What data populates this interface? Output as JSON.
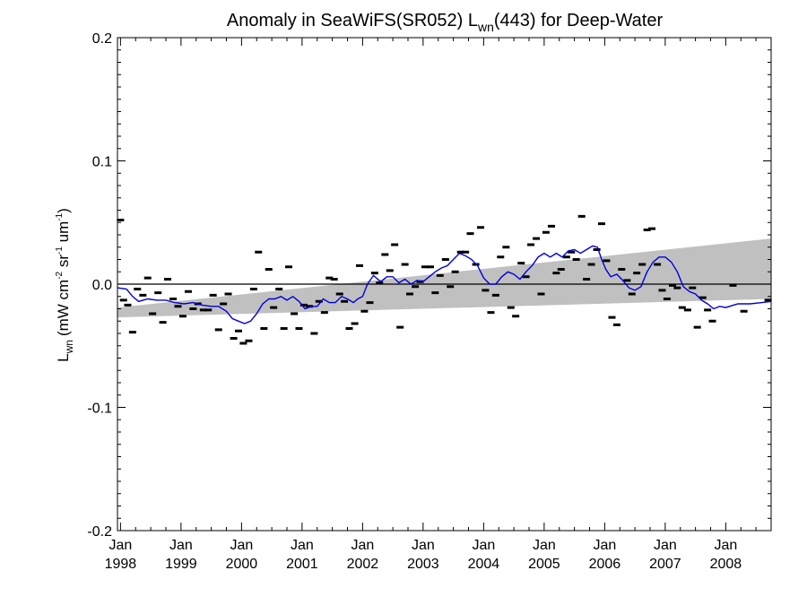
{
  "chart_data": {
    "type": "scatter",
    "title_main": "Anomaly in SeaWiFS(SR052) L",
    "title_sub": "wn",
    "title_rest": "(443) for Deep-Water",
    "ylabel_main": "L",
    "ylabel_sub": "wn",
    "ylabel_units": "(mW cm",
    "ylabel_exp1": "-2",
    "ylabel_sr": " sr",
    "ylabel_exp2": "-1",
    "ylabel_um": " um",
    "ylabel_exp3": "-1",
    "ylabel_close": ")",
    "x_range": [
      1997.95,
      2008.75
    ],
    "ylim": [
      -0.2,
      0.2
    ],
    "y_ticks": [
      {
        "value": 0.2,
        "label": "0.2"
      },
      {
        "value": 0.1,
        "label": "0.1"
      },
      {
        "value": 0.0,
        "label": "0.0"
      },
      {
        "value": -0.1,
        "label": "-0.1"
      },
      {
        "value": -0.2,
        "label": "-0.2"
      }
    ],
    "x_ticks": [
      {
        "value": 1998,
        "month": "Jan",
        "year": "1998"
      },
      {
        "value": 1999,
        "month": "Jan",
        "year": "1999"
      },
      {
        "value": 2000,
        "month": "Jan",
        "year": "2000"
      },
      {
        "value": 2001,
        "month": "Jan",
        "year": "2001"
      },
      {
        "value": 2002,
        "month": "Jan",
        "year": "2002"
      },
      {
        "value": 2003,
        "month": "Jan",
        "year": "2003"
      },
      {
        "value": 2004,
        "month": "Jan",
        "year": "2004"
      },
      {
        "value": 2005,
        "month": "Jan",
        "year": "2005"
      },
      {
        "value": 2006,
        "month": "Jan",
        "year": "2006"
      },
      {
        "value": 2007,
        "month": "Jan",
        "year": "2007"
      },
      {
        "value": 2008,
        "month": "Jan",
        "year": "2008"
      }
    ],
    "zero_line": 0.0,
    "trend_band": {
      "x": [
        1997.95,
        2008.75
      ],
      "upper": [
        -0.019,
        0.037
      ],
      "lower": [
        -0.027,
        -0.012
      ]
    },
    "monthly_points": [
      {
        "x": 1998.0,
        "y": 0.052
      },
      {
        "x": 1998.05,
        "y": -0.013
      },
      {
        "x": 1998.12,
        "y": -0.017
      },
      {
        "x": 1998.2,
        "y": -0.039
      },
      {
        "x": 1998.28,
        "y": -0.004
      },
      {
        "x": 1998.37,
        "y": -0.009
      },
      {
        "x": 1998.45,
        "y": 0.005
      },
      {
        "x": 1998.53,
        "y": -0.024
      },
      {
        "x": 1998.62,
        "y": -0.007
      },
      {
        "x": 1998.7,
        "y": -0.031
      },
      {
        "x": 1998.78,
        "y": 0.004
      },
      {
        "x": 1998.87,
        "y": -0.012
      },
      {
        "x": 1998.95,
        "y": -0.018
      },
      {
        "x": 1999.03,
        "y": -0.026
      },
      {
        "x": 1999.12,
        "y": -0.006
      },
      {
        "x": 1999.2,
        "y": -0.02
      },
      {
        "x": 1999.28,
        "y": -0.016
      },
      {
        "x": 1999.37,
        "y": -0.021
      },
      {
        "x": 1999.45,
        "y": -0.021
      },
      {
        "x": 1999.53,
        "y": -0.009
      },
      {
        "x": 1999.62,
        "y": -0.037
      },
      {
        "x": 1999.7,
        "y": -0.016
      },
      {
        "x": 1999.78,
        "y": -0.008
      },
      {
        "x": 1999.87,
        "y": -0.044
      },
      {
        "x": 1999.95,
        "y": -0.038
      },
      {
        "x": 2000.03,
        "y": -0.048
      },
      {
        "x": 2000.12,
        "y": -0.046
      },
      {
        "x": 2000.2,
        "y": -0.004
      },
      {
        "x": 2000.28,
        "y": 0.026
      },
      {
        "x": 2000.37,
        "y": -0.036
      },
      {
        "x": 2000.45,
        "y": 0.012
      },
      {
        "x": 2000.53,
        "y": -0.019
      },
      {
        "x": 2000.62,
        "y": -0.004
      },
      {
        "x": 2000.7,
        "y": -0.036
      },
      {
        "x": 2000.78,
        "y": 0.014
      },
      {
        "x": 2000.87,
        "y": -0.024
      },
      {
        "x": 2000.95,
        "y": -0.036
      },
      {
        "x": 2001.03,
        "y": -0.017
      },
      {
        "x": 2001.12,
        "y": -0.018
      },
      {
        "x": 2001.2,
        "y": -0.04
      },
      {
        "x": 2001.28,
        "y": -0.014
      },
      {
        "x": 2001.37,
        "y": -0.023
      },
      {
        "x": 2001.45,
        "y": 0.005
      },
      {
        "x": 2001.53,
        "y": 0.004
      },
      {
        "x": 2001.62,
        "y": -0.008
      },
      {
        "x": 2001.7,
        "y": -0.014
      },
      {
        "x": 2001.78,
        "y": -0.036
      },
      {
        "x": 2001.87,
        "y": -0.032
      },
      {
        "x": 2001.95,
        "y": 0.015
      },
      {
        "x": 2002.03,
        "y": -0.022
      },
      {
        "x": 2002.12,
        "y": -0.015
      },
      {
        "x": 2002.2,
        "y": 0.009
      },
      {
        "x": 2002.28,
        "y": 0.001
      },
      {
        "x": 2002.37,
        "y": 0.024
      },
      {
        "x": 2002.45,
        "y": 0.011
      },
      {
        "x": 2002.53,
        "y": 0.032
      },
      {
        "x": 2002.62,
        "y": -0.035
      },
      {
        "x": 2002.7,
        "y": 0.016
      },
      {
        "x": 2002.78,
        "y": -0.008
      },
      {
        "x": 2002.87,
        "y": -0.002
      },
      {
        "x": 2002.95,
        "y": 0.002
      },
      {
        "x": 2003.03,
        "y": 0.014
      },
      {
        "x": 2003.12,
        "y": 0.014
      },
      {
        "x": 2003.2,
        "y": -0.007
      },
      {
        "x": 2003.28,
        "y": 0.007
      },
      {
        "x": 2003.37,
        "y": 0.02
      },
      {
        "x": 2003.45,
        "y": -0.002
      },
      {
        "x": 2003.53,
        "y": 0.01
      },
      {
        "x": 2003.62,
        "y": 0.026
      },
      {
        "x": 2003.7,
        "y": 0.026
      },
      {
        "x": 2003.78,
        "y": 0.041
      },
      {
        "x": 2003.87,
        "y": 0.016
      },
      {
        "x": 2003.95,
        "y": 0.046
      },
      {
        "x": 2004.03,
        "y": -0.005
      },
      {
        "x": 2004.12,
        "y": -0.023
      },
      {
        "x": 2004.2,
        "y": -0.009
      },
      {
        "x": 2004.28,
        "y": 0.022
      },
      {
        "x": 2004.37,
        "y": 0.03
      },
      {
        "x": 2004.45,
        "y": -0.019
      },
      {
        "x": 2004.53,
        "y": -0.026
      },
      {
        "x": 2004.62,
        "y": 0.017
      },
      {
        "x": 2004.7,
        "y": 0.006
      },
      {
        "x": 2004.78,
        "y": 0.032
      },
      {
        "x": 2004.87,
        "y": 0.037
      },
      {
        "x": 2004.95,
        "y": -0.008
      },
      {
        "x": 2005.03,
        "y": 0.042
      },
      {
        "x": 2005.12,
        "y": 0.047
      },
      {
        "x": 2005.2,
        "y": 0.009
      },
      {
        "x": 2005.28,
        "y": 0.012
      },
      {
        "x": 2005.37,
        "y": 0.022
      },
      {
        "x": 2005.45,
        "y": 0.026
      },
      {
        "x": 2005.53,
        "y": 0.02
      },
      {
        "x": 2005.62,
        "y": 0.055
      },
      {
        "x": 2005.7,
        "y": 0.004
      },
      {
        "x": 2005.78,
        "y": 0.016
      },
      {
        "x": 2005.87,
        "y": 0.028
      },
      {
        "x": 2005.95,
        "y": 0.049
      },
      {
        "x": 2006.03,
        "y": 0.019
      },
      {
        "x": 2006.12,
        "y": -0.027
      },
      {
        "x": 2006.2,
        "y": -0.033
      },
      {
        "x": 2006.28,
        "y": 0.012
      },
      {
        "x": 2006.37,
        "y": 0.003
      },
      {
        "x": 2006.45,
        "y": -0.008
      },
      {
        "x": 2006.53,
        "y": 0.009
      },
      {
        "x": 2006.62,
        "y": 0.016
      },
      {
        "x": 2006.7,
        "y": 0.044
      },
      {
        "x": 2006.78,
        "y": 0.045
      },
      {
        "x": 2006.87,
        "y": 0.016
      },
      {
        "x": 2006.95,
        "y": -0.005
      },
      {
        "x": 2007.03,
        "y": -0.012
      },
      {
        "x": 2007.12,
        "y": -0.001
      },
      {
        "x": 2007.2,
        "y": -0.003
      },
      {
        "x": 2007.28,
        "y": -0.019
      },
      {
        "x": 2007.37,
        "y": -0.021
      },
      {
        "x": 2007.45,
        "y": -0.003
      },
      {
        "x": 2007.53,
        "y": -0.035
      },
      {
        "x": 2007.62,
        "y": -0.011
      },
      {
        "x": 2007.7,
        "y": -0.021
      },
      {
        "x": 2007.78,
        "y": -0.03
      },
      {
        "x": 2008.12,
        "y": -0.001
      },
      {
        "x": 2008.3,
        "y": -0.022
      },
      {
        "x": 2008.7,
        "y": -0.013
      }
    ],
    "running_mean": {
      "x": [
        1997.95,
        1998.1,
        1998.2,
        1998.3,
        1998.45,
        1998.6,
        1998.75,
        1998.9,
        1999.05,
        1999.2,
        1999.35,
        1999.5,
        1999.62,
        1999.75,
        1999.85,
        1999.95,
        2000.05,
        2000.15,
        2000.25,
        2000.35,
        2000.45,
        2000.55,
        2000.65,
        2000.75,
        2000.85,
        2000.95,
        2001.05,
        2001.15,
        2001.25,
        2001.35,
        2001.45,
        2001.55,
        2001.65,
        2001.75,
        2001.85,
        2001.92,
        2002.0,
        2002.08,
        2002.18,
        2002.3,
        2002.4,
        2002.5,
        2002.6,
        2002.7,
        2002.8,
        2002.9,
        2003.0,
        2003.1,
        2003.2,
        2003.3,
        2003.4,
        2003.5,
        2003.6,
        2003.7,
        2003.8,
        2003.9,
        2004.0,
        2004.1,
        2004.2,
        2004.3,
        2004.4,
        2004.5,
        2004.6,
        2004.7,
        2004.8,
        2004.9,
        2005.0,
        2005.1,
        2005.2,
        2005.3,
        2005.4,
        2005.5,
        2005.6,
        2005.7,
        2005.8,
        2005.88,
        2005.95,
        2006.02,
        2006.1,
        2006.2,
        2006.3,
        2006.4,
        2006.5,
        2006.6,
        2006.7,
        2006.8,
        2006.9,
        2007.0,
        2007.1,
        2007.2,
        2007.3,
        2007.4,
        2007.5,
        2007.6,
        2007.7,
        2007.8,
        2007.9,
        2008.0,
        2008.2,
        2008.4,
        2008.6,
        2008.75
      ],
      "y": [
        -0.003,
        -0.004,
        -0.01,
        -0.014,
        -0.012,
        -0.013,
        -0.013,
        -0.015,
        -0.016,
        -0.015,
        -0.017,
        -0.018,
        -0.018,
        -0.022,
        -0.028,
        -0.03,
        -0.032,
        -0.03,
        -0.024,
        -0.016,
        -0.012,
        -0.012,
        -0.01,
        -0.013,
        -0.01,
        -0.014,
        -0.02,
        -0.018,
        -0.018,
        -0.012,
        -0.015,
        -0.015,
        -0.01,
        -0.012,
        -0.015,
        -0.012,
        -0.01,
        0.0,
        0.007,
        0.002,
        0.006,
        0.006,
        0.001,
        0.004,
        0.0,
        0.003,
        0.002,
        0.006,
        0.01,
        0.013,
        0.015,
        0.02,
        0.025,
        0.023,
        0.02,
        0.015,
        0.005,
        0.0,
        0.0,
        0.006,
        0.01,
        0.008,
        0.004,
        0.01,
        0.015,
        0.022,
        0.025,
        0.022,
        0.025,
        0.022,
        0.027,
        0.028,
        0.025,
        0.028,
        0.031,
        0.03,
        0.02,
        0.012,
        0.006,
        0.008,
        0.003,
        -0.003,
        -0.005,
        -0.002,
        0.01,
        0.018,
        0.022,
        0.022,
        0.018,
        0.01,
        -0.002,
        -0.006,
        -0.008,
        -0.013,
        -0.016,
        -0.02,
        -0.018,
        -0.019,
        -0.016,
        -0.016,
        -0.015,
        -0.014
      ]
    },
    "colors": {
      "band": "#c0c0c0",
      "mean_line": "#0000dd",
      "points": "#000000",
      "axes": "#000000"
    },
    "grid": false
  }
}
